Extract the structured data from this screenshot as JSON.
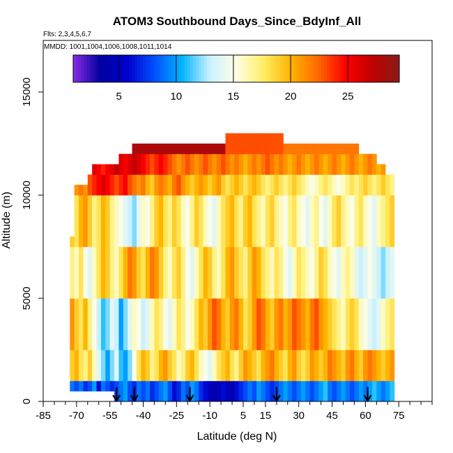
{
  "chart_data": {
    "type": "heatmap",
    "title": "ATOM3 Southbound Days_Since_BdyInf_All",
    "flights_label": "Flts: 2,3,4,5,6,7",
    "mmdd_label": "MMDD: 1001,1004,1006,1008,1011,1014",
    "xlabel": "Latitude (deg N)",
    "ylabel": "Altitude (m)",
    "xlim": [
      -85,
      90
    ],
    "ylim": [
      0,
      17500
    ],
    "x_ticks": [
      -85,
      -70,
      -55,
      -40,
      -25,
      -10,
      5,
      15,
      30,
      45,
      60,
      75
    ],
    "x_minor_ticks": [
      -80,
      -75,
      -65,
      -60,
      -50,
      -45,
      -35,
      -30,
      -20,
      -15,
      -5,
      0,
      10,
      20,
      25,
      35,
      40,
      50,
      55,
      65,
      70,
      80,
      85,
      90
    ],
    "y_ticks": [
      0,
      5000,
      10000,
      15000
    ],
    "colorbar": {
      "range": [
        1,
        29.5
      ],
      "ticks": [
        5,
        10,
        15,
        20,
        25
      ],
      "colors": [
        "#8a2be2",
        "#0000a0",
        "#0000cd",
        "#0050ff",
        "#00b4ff",
        "#c8f0ff",
        "#ffffe6",
        "#ffee66",
        "#ffb400",
        "#ff6a00",
        "#ff0000",
        "#c00000",
        "#8b1a1a"
      ]
    },
    "flight_arrow_latitudes": [
      -52,
      -44,
      -19,
      20,
      61
    ],
    "profiles": {
      "lat_min": -72,
      "lat_max": 72,
      "lat_step": 2,
      "alt_step": 500,
      "top_altitudes": [
        8000,
        10500,
        10500,
        10500,
        11000,
        11500,
        11500,
        11500,
        11500,
        11500,
        11500,
        12000,
        12000,
        12000,
        12500,
        12500,
        12500,
        12500,
        12500,
        12500,
        12500,
        12500,
        12500,
        12500,
        12500,
        12500,
        12500,
        12500,
        12500,
        12500,
        12500,
        12500,
        12500,
        12500,
        12500,
        13000,
        13000,
        13000,
        13000,
        13000,
        13000,
        13000,
        13000,
        13000,
        13000,
        13000,
        13000,
        13000,
        12500,
        12500,
        12500,
        12500,
        12500,
        12500,
        12500,
        12500,
        12500,
        12500,
        12500,
        12500,
        12500,
        12500,
        12500,
        12500,
        12500,
        12000,
        12000,
        12000,
        12000,
        11500,
        11500,
        11000,
        11000
      ],
      "bottom_altitudes": [
        500,
        500,
        500,
        500,
        500,
        500,
        500,
        500,
        500,
        500,
        0,
        0,
        0,
        0,
        0,
        0,
        0,
        0,
        0,
        0,
        0,
        0,
        0,
        0,
        0,
        0,
        0,
        0,
        0,
        0,
        0,
        0,
        0,
        0,
        0,
        0,
        0,
        0,
        0,
        0,
        0,
        0,
        0,
        0,
        0,
        0,
        0,
        0,
        0,
        0,
        0,
        0,
        0,
        0,
        0,
        0,
        0,
        0,
        0,
        0,
        0,
        0,
        0,
        0,
        0,
        0,
        0,
        0,
        0,
        0,
        0,
        0,
        0
      ],
      "days_by_altitude_band": [
        {
          "alt_max": 1000,
          "days": [
            9,
            8,
            9,
            7,
            8,
            10,
            6,
            9,
            8,
            7,
            8,
            9,
            10,
            8,
            7,
            9,
            8,
            9,
            7,
            8,
            9,
            10,
            8,
            6,
            7,
            9,
            8,
            10,
            9,
            7,
            6,
            5,
            4,
            5,
            6,
            5,
            4,
            6,
            7,
            8,
            9,
            8,
            10,
            9,
            8,
            7,
            8,
            9,
            10,
            9,
            8,
            9,
            10,
            9,
            8,
            9,
            10,
            11,
            9,
            8,
            9,
            10,
            9,
            8,
            9,
            10,
            9,
            10,
            11,
            10,
            9,
            10,
            11
          ]
        },
        {
          "alt_max": 2500,
          "days": [
            19,
            20,
            18,
            17,
            19,
            16,
            14,
            12,
            10,
            12,
            14,
            11,
            10,
            12,
            15,
            18,
            20,
            19,
            17,
            18,
            20,
            21,
            19,
            18,
            16,
            17,
            19,
            20,
            18,
            16,
            15,
            14,
            16,
            18,
            19,
            20,
            18,
            17,
            19,
            21,
            20,
            19,
            18,
            20,
            21,
            22,
            20,
            19,
            18,
            20,
            21,
            19,
            18,
            19,
            21,
            20,
            19,
            20,
            22,
            21,
            20,
            19,
            21,
            22,
            20,
            19,
            21,
            22,
            21,
            20,
            19,
            20,
            21
          ]
        },
        {
          "alt_max": 5000,
          "days": [
            21,
            19,
            18,
            20,
            17,
            15,
            13,
            11,
            12,
            14,
            13,
            10,
            12,
            14,
            16,
            15,
            13,
            14,
            16,
            18,
            17,
            15,
            14,
            16,
            18,
            17,
            15,
            16,
            18,
            20,
            19,
            21,
            23,
            22,
            20,
            19,
            21,
            22,
            20,
            18,
            19,
            21,
            23,
            22,
            20,
            19,
            21,
            22,
            20,
            21,
            23,
            22,
            21,
            20,
            22,
            23,
            21,
            20,
            19,
            18,
            17,
            16,
            18,
            19,
            18,
            16,
            15,
            14,
            13,
            14,
            16,
            17,
            18
          ]
        },
        {
          "alt_max": 7500,
          "days": [
            17,
            16,
            18,
            15,
            14,
            16,
            18,
            20,
            19,
            17,
            16,
            18,
            20,
            22,
            21,
            19,
            18,
            20,
            22,
            21,
            19,
            17,
            16,
            18,
            19,
            17,
            15,
            14,
            16,
            18,
            20,
            19,
            17,
            16,
            18,
            20,
            21,
            19,
            18,
            17,
            19,
            21,
            20,
            18,
            17,
            16,
            18,
            17,
            15,
            14,
            16,
            18,
            17,
            16,
            15,
            17,
            19,
            18,
            16,
            15,
            14,
            16,
            17,
            16,
            14,
            13,
            14,
            15,
            14,
            13,
            12,
            13,
            14
          ]
        },
        {
          "alt_max": 10000,
          "days": [
            19,
            18,
            20,
            21,
            19,
            17,
            18,
            20,
            19,
            17,
            16,
            15,
            14,
            13,
            12,
            14,
            16,
            15,
            17,
            19,
            20,
            18,
            17,
            19,
            18,
            16,
            15,
            17,
            19,
            18,
            16,
            15,
            14,
            16,
            18,
            19,
            20,
            18,
            17,
            19,
            20,
            18,
            17,
            16,
            18,
            19,
            17,
            16,
            15,
            17,
            18,
            16,
            15,
            14,
            16,
            17,
            15,
            14,
            16,
            18,
            19,
            17,
            16,
            15,
            17,
            18,
            16,
            15,
            14,
            16,
            17,
            18,
            19
          ]
        },
        {
          "alt_max": 11000,
          "days": [
            20,
            21,
            22,
            21,
            23,
            24,
            25,
            26,
            25,
            24,
            23,
            24,
            25,
            23,
            22,
            21,
            22,
            20,
            19,
            21,
            22,
            21,
            20,
            22,
            23,
            21,
            20,
            19,
            20,
            21,
            20,
            19,
            20,
            21,
            19,
            18,
            19,
            20,
            19,
            18,
            19,
            20,
            19,
            18,
            17,
            18,
            19,
            18,
            17,
            18,
            19,
            18,
            17,
            16,
            15,
            16,
            17,
            18,
            17,
            16,
            15,
            16,
            17,
            18,
            17,
            18,
            19,
            18,
            17,
            18,
            19,
            18,
            17
          ]
        },
        {
          "alt_max": 12000,
          "days": [
            22,
            23,
            22,
            24,
            25,
            26,
            25,
            24,
            25,
            26,
            27,
            26,
            25,
            26,
            27,
            26,
            25,
            24,
            23,
            24,
            25,
            24,
            23,
            22,
            21,
            22,
            23,
            22,
            21,
            22,
            23,
            22,
            21,
            22,
            23,
            22,
            21,
            22,
            21,
            20,
            21,
            22,
            21,
            22,
            23,
            22,
            21,
            22,
            21,
            20,
            21,
            22,
            21,
            20,
            21,
            22,
            21,
            20,
            21,
            22,
            21,
            20,
            21,
            22,
            21,
            20,
            21,
            22,
            21,
            20,
            21,
            22,
            21
          ]
        },
        {
          "alt_max": 13000,
          "days": [
            25,
            25,
            25,
            25,
            25,
            26,
            27,
            28,
            28,
            28,
            28,
            28,
            28,
            28,
            28,
            28,
            28,
            28,
            28,
            28,
            28,
            28,
            28,
            28,
            28,
            28,
            28,
            28,
            28,
            28,
            28,
            28,
            28,
            28,
            28,
            23,
            23,
            23,
            23,
            23,
            23,
            23,
            23,
            23,
            23,
            23,
            23,
            23,
            22,
            22,
            22,
            22,
            22,
            22,
            22,
            22,
            22,
            22,
            22,
            22,
            22,
            22,
            22,
            22,
            22,
            22,
            22,
            22,
            22,
            22,
            22,
            22,
            22
          ]
        }
      ]
    }
  }
}
